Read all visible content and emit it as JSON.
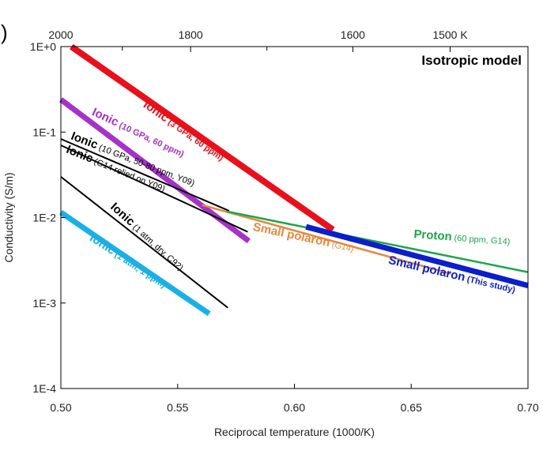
{
  "panel_fragment": ")",
  "chart_data": {
    "type": "line",
    "title": "Isotropic model",
    "xlabel": "Reciprocal temperature (1000/K)",
    "ylabel": "Conductivity (S/m)",
    "xlim": [
      0.5,
      0.7
    ],
    "ylim": [
      0.0001,
      1
    ],
    "y_scale": "log",
    "grid": false,
    "x_ticks": [
      {
        "value": 0.5,
        "label": "0.50"
      },
      {
        "value": 0.55,
        "label": "0.55"
      },
      {
        "value": 0.6,
        "label": "0.60"
      },
      {
        "value": 0.65,
        "label": "0.65"
      },
      {
        "value": 0.7,
        "label": "0.70"
      }
    ],
    "y_ticks": [
      {
        "value": 1,
        "label": "1E+0"
      },
      {
        "value": 0.1,
        "label": "1E-1"
      },
      {
        "value": 0.01,
        "label": "1E-2"
      },
      {
        "value": 0.001,
        "label": "1E-3"
      },
      {
        "value": 0.0001,
        "label": "1E-4"
      }
    ],
    "top_axis_ticks": [
      {
        "value": 2000,
        "label": "2000"
      },
      {
        "value": 1800,
        "label": "1800"
      },
      {
        "value": 1600,
        "label": "1600"
      },
      {
        "value": 1500,
        "label": "1500 K"
      }
    ],
    "top_axis_minor_ticks": [
      1900,
      1700
    ],
    "series": [
      {
        "color": "#e8111b",
        "width": 8,
        "x": [
          0.5045,
          0.6165
        ],
        "y": [
          1.0,
          0.0072
        ],
        "label": {
          "main": "Ionic",
          "sub": "(3 GPa, 60 ppm)",
          "sub_bold": true,
          "color": "#e8111b",
          "at": [
            0.535,
            0.2
          ],
          "angle": 35
        }
      },
      {
        "color": "#a632c8",
        "width": 7,
        "x": [
          0.5,
          0.5805
        ],
        "y": [
          0.24,
          0.0053
        ],
        "label": {
          "main": "Ionic",
          "sub": "(10 GPa, 60 ppm)",
          "sub_bold": true,
          "color": "#a632c8",
          "at": [
            0.513,
            0.16
          ],
          "angle": 25
        }
      },
      {
        "color": "#000000",
        "width": 2,
        "x": [
          0.5,
          0.572
        ],
        "y": [
          0.083,
          0.012
        ],
        "label": {
          "main": "Ionic",
          "sub": "(10 GPa, 50-80 ppm, Y09)",
          "sub_bold": false,
          "color": "#000000",
          "at": [
            0.504,
            0.083
          ],
          "angle": 21
        }
      },
      {
        "color": "#000000",
        "width": 2,
        "x": [
          0.5,
          0.58
        ],
        "y": [
          0.07,
          0.0068
        ],
        "label": {
          "main": "Ionic",
          "sub": "(G14 relied on Y09)",
          "sub_bold": false,
          "color": "#000000",
          "at": [
            0.502,
            0.058
          ],
          "angle": 22
        }
      },
      {
        "color": "#000000",
        "width": 2,
        "x": [
          0.5,
          0.5715
        ],
        "y": [
          0.03,
          0.00088
        ],
        "label": {
          "main": "Ionic",
          "sub": "(1 atm, dry, C92)",
          "sub_bold": false,
          "color": "#000000",
          "at": [
            0.521,
            0.013
          ],
          "angle": 42
        }
      },
      {
        "color": "#1ab0e6",
        "width": 7,
        "x": [
          0.5,
          0.5635
        ],
        "y": [
          0.0115,
          0.00075
        ],
        "label": {
          "main": "Ionic",
          "sub": "(1 atm, 1 ppm)",
          "sub_bold": true,
          "color": "#1ab0e6",
          "at": [
            0.512,
            0.0055
          ],
          "angle": 33
        }
      },
      {
        "color": "#e8873c",
        "width": 2.5,
        "x": [
          0.5605,
          0.667
        ],
        "y": [
          0.014,
          0.0022
        ],
        "label": {
          "main": "Small polaron",
          "sub": "(G14)",
          "sub_bold": false,
          "color": "#e8873c",
          "at": [
            0.582,
            0.0071
          ],
          "angle": 12
        }
      },
      {
        "color": "#1fa64a",
        "width": 2.5,
        "x": [
          0.571,
          0.7
        ],
        "y": [
          0.0118,
          0.0023
        ],
        "label": {
          "main": "Proton",
          "sub": "(60 ppm, G14)",
          "sub_bold": false,
          "color": "#1fa64a",
          "at": [
            0.651,
            0.0058
          ],
          "angle": 4
        }
      },
      {
        "color": "#0a1ecc",
        "width": 7,
        "x": [
          0.605,
          0.7
        ],
        "y": [
          0.0078,
          0.0016
        ],
        "label": {
          "main": "Small polaron",
          "sub": "(This study)",
          "sub_bold": true,
          "color": "#0a1ecc",
          "at": [
            0.64,
            0.0029
          ],
          "angle": 13
        }
      }
    ]
  }
}
